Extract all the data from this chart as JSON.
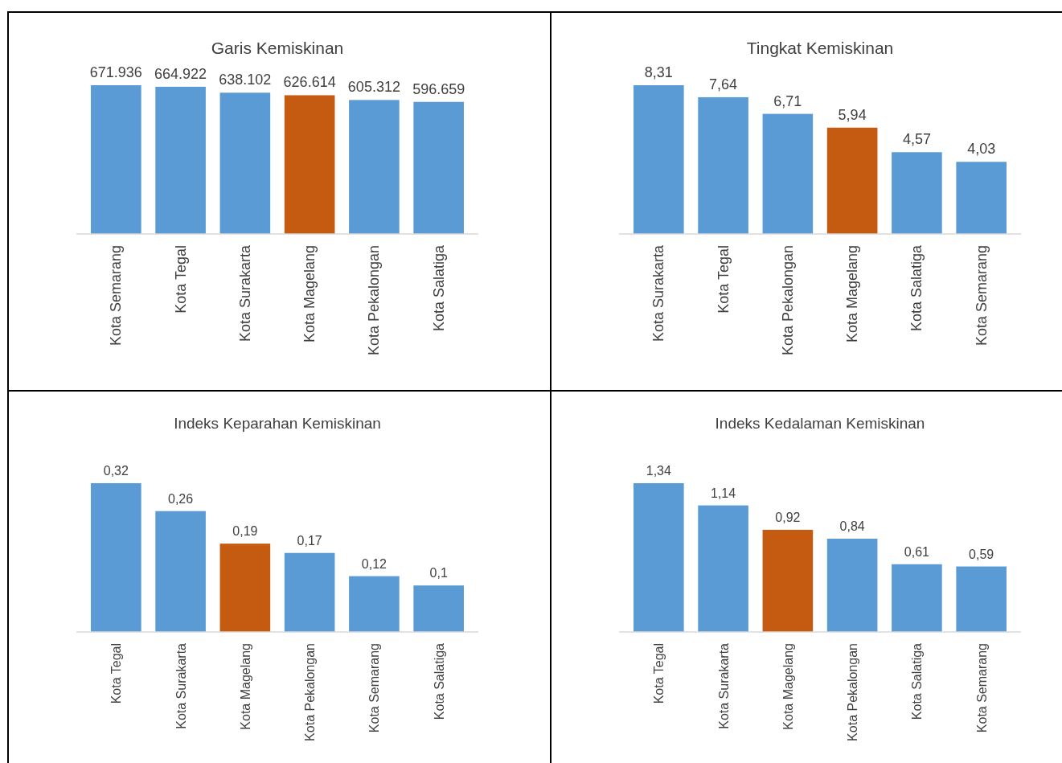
{
  "chart_data": [
    {
      "type": "bar",
      "title": "Garis Kemiskinan",
      "categories": [
        "Kota Semarang",
        "Kota Tegal",
        "Kota Surakarta",
        "Kota Magelang",
        "Kota Pekalongan",
        "Kota Salatiga"
      ],
      "values": [
        671936,
        664922,
        638102,
        626614,
        605312,
        596659
      ],
      "value_labels": [
        "671.936",
        "664.922",
        "638.102",
        "626.614",
        "605.312",
        "596.659"
      ],
      "colors": [
        "#5b9bd5",
        "#5b9bd5",
        "#5b9bd5",
        "#c55a11",
        "#5b9bd5",
        "#5b9bd5"
      ],
      "tick_labels": "x"
    },
    {
      "type": "bar",
      "title": "Tingkat Kemiskinan",
      "categories": [
        "Kota Surakarta",
        "Kota Tegal",
        "Kota Pekalongan",
        "Kota Magelang",
        "Kota Salatiga",
        "Kota Semarang"
      ],
      "values": [
        8.31,
        7.64,
        6.71,
        5.94,
        4.57,
        4.03
      ],
      "value_labels": [
        "8,31",
        "7,64",
        "6,71",
        "5,94",
        "4,57",
        "4,03"
      ],
      "colors": [
        "#5b9bd5",
        "#5b9bd5",
        "#5b9bd5",
        "#c55a11",
        "#5b9bd5",
        "#5b9bd5"
      ],
      "tick_labels": "x"
    },
    {
      "type": "bar",
      "title": "Indeks Keparahan Kemiskinan",
      "categories": [
        "Kota Tegal",
        "Kota Surakarta",
        "Kota Magelang",
        "Kota Pekalongan",
        "Kota Semarang",
        "Kota Salatiga"
      ],
      "values": [
        0.32,
        0.26,
        0.19,
        0.17,
        0.12,
        0.1
      ],
      "value_labels": [
        "0,32",
        "0,26",
        "0,19",
        "0,17",
        "0,12",
        "0,1"
      ],
      "colors": [
        "#5b9bd5",
        "#5b9bd5",
        "#c55a11",
        "#5b9bd5",
        "#5b9bd5",
        "#5b9bd5"
      ],
      "tick_labels": "x"
    },
    {
      "type": "bar",
      "title": "Indeks Kedalaman Kemiskinan",
      "categories": [
        "Kota Tegal",
        "Kota Surakarta",
        "Kota Magelang",
        "Kota Pekalongan",
        "Kota Salatiga",
        "Kota Semarang"
      ],
      "values": [
        1.34,
        1.14,
        0.92,
        0.84,
        0.61,
        0.59
      ],
      "value_labels": [
        "1,34",
        "1,14",
        "0,92",
        "0,84",
        "0,61",
        "0,59"
      ],
      "colors": [
        "#5b9bd5",
        "#5b9bd5",
        "#c55a11",
        "#5b9bd5",
        "#5b9bd5",
        "#5b9bd5"
      ],
      "tick_labels": "x"
    }
  ]
}
